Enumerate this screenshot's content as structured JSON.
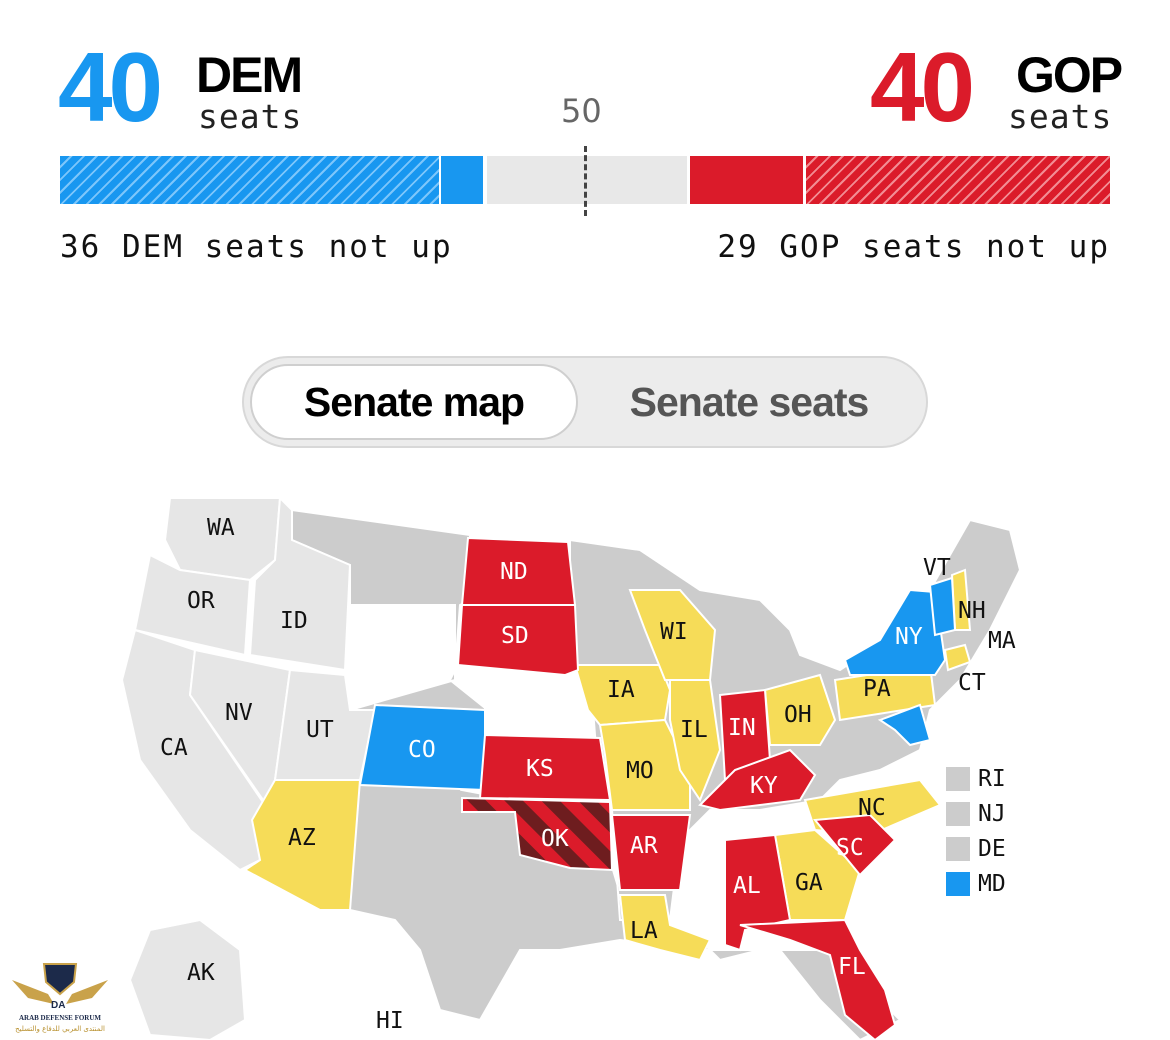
{
  "header": {
    "dem_count": "40",
    "dem_label": "DEM",
    "dem_sub": "seats",
    "gop_count": "40",
    "gop_label": "GOP",
    "gop_sub": "seats",
    "majority_marker": "50",
    "dem_not_up": "36 DEM seats not up",
    "gop_not_up": "29 GOP seats not up"
  },
  "colors": {
    "dem": "#1897f0",
    "gop": "#db1b2a",
    "toss_up": "#f6dc58",
    "not_up": "#cccccc",
    "no_race": "#e6e6e6",
    "gop_flip_stripe": "#6e1d1f"
  },
  "toggle": {
    "active": "Senate map",
    "inactive": "Senate seats"
  },
  "map": {
    "states": {
      "WA": "WA",
      "OR": "OR",
      "CA": "CA",
      "ID": "ID",
      "NV": "NV",
      "UT": "UT",
      "AZ": "AZ",
      "CO": "CO",
      "ND": "ND",
      "SD": "SD",
      "KS": "KS",
      "OK": "OK",
      "IA": "IA",
      "MO": "MO",
      "AR": "AR",
      "LA": "LA",
      "WI": "WI",
      "IL": "IL",
      "IN": "IN",
      "KY": "KY",
      "OH": "OH",
      "PA": "PA",
      "NY": "NY",
      "VT": "VT",
      "NH": "NH",
      "MA": "MA",
      "CT": "CT",
      "NC": "NC",
      "SC": "SC",
      "GA": "GA",
      "AL": "AL",
      "FL": "FL",
      "AK": "AK",
      "HI": "HI"
    },
    "legend": [
      {
        "label": "RI",
        "color": "#cccccc"
      },
      {
        "label": "NJ",
        "color": "#cccccc"
      },
      {
        "label": "DE",
        "color": "#cccccc"
      },
      {
        "label": "MD",
        "color": "#1897f0"
      }
    ]
  },
  "watermark": {
    "title": "ARAB DEFENSE FORUM",
    "subtitle": "المنتدى العربي للدفاع والتسليح",
    "mark": "DA"
  }
}
